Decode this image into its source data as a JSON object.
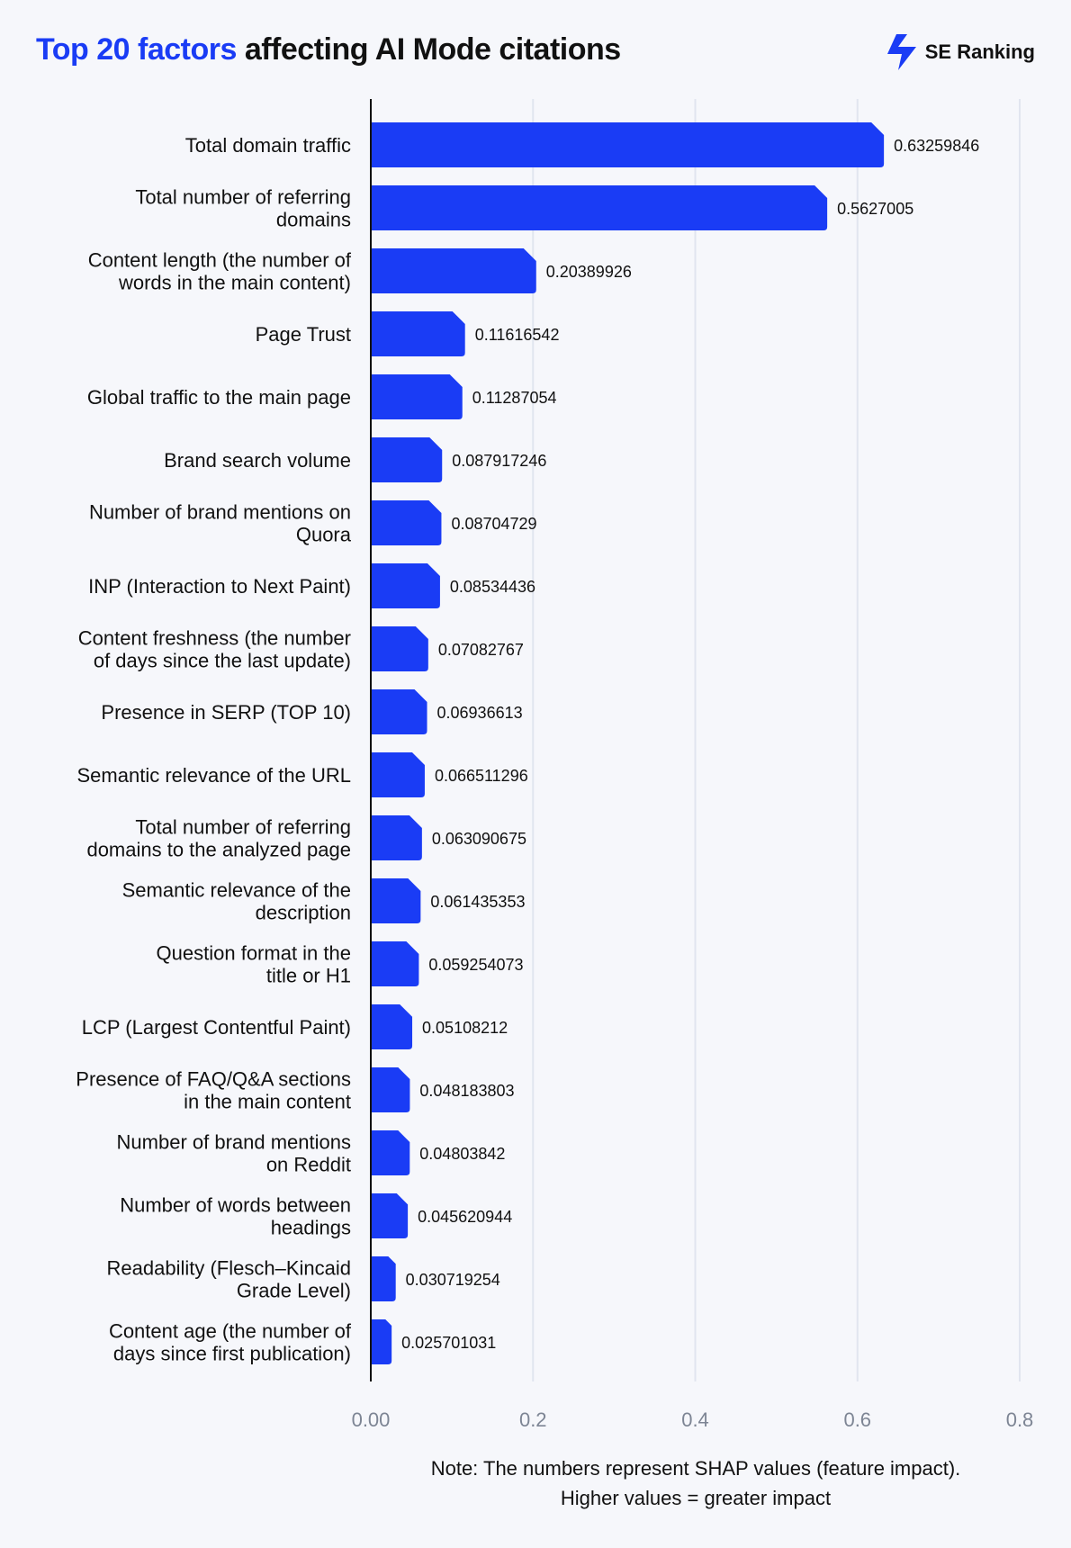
{
  "header": {
    "title_highlight": "Top 20 factors",
    "title_rest": "affecting AI Mode citations",
    "logo_text": "SE Ranking"
  },
  "colors": {
    "bar": "#1a3cf5",
    "highlight": "#1a3cf5",
    "grid": "#e1e5ef",
    "tick": "#7d8594"
  },
  "chart_data": {
    "type": "bar",
    "orientation": "horizontal",
    "title": "Top 20 factors affecting AI Mode citations",
    "categories": [
      "Total domain traffic",
      "Total number of referring domains",
      "Content length (the number of words in the main content)",
      "Page Trust",
      "Global traffic to the main page",
      "Brand search volume",
      "Number of brand mentions on Quora",
      "INP (Interaction to Next Paint)",
      "Content freshness (the number of days since the last update)",
      "Presence in SERP (TOP 10)",
      "Semantic relevance of the URL",
      "Total number of referring domains to the analyzed page",
      "Semantic relevance of the description",
      "Question format in the title or H1",
      "LCP (Largest Contentful Paint)",
      "Presence of FAQ/Q&A sections in the main content",
      "Number of brand mentions on Reddit",
      "Number of words between headings",
      "Readability (Flesch–Kincaid Grade Level)",
      "Content age (the number of days since first publication)"
    ],
    "label_lines": [
      [
        "Total domain traffic"
      ],
      [
        "Total number of referring",
        "domains"
      ],
      [
        "Content length (the number of",
        "words in the main content)"
      ],
      [
        "Page Trust"
      ],
      [
        "Global traffic to the main page"
      ],
      [
        "Brand search volume"
      ],
      [
        "Number of brand mentions on",
        "Quora"
      ],
      [
        "INP (Interaction to Next Paint)"
      ],
      [
        "Content freshness (the number",
        "of days since the last update)"
      ],
      [
        "Presence in SERP (TOP 10)"
      ],
      [
        "Semantic relevance of the URL"
      ],
      [
        "Total number of referring",
        "domains to the analyzed page"
      ],
      [
        "Semantic relevance of the",
        "description"
      ],
      [
        "Question format in the",
        "title or H1"
      ],
      [
        "LCP (Largest Contentful Paint)"
      ],
      [
        "Presence of FAQ/Q&A sections",
        "in the main content"
      ],
      [
        "Number of brand mentions",
        "on Reddit"
      ],
      [
        "Number of words between",
        "headings"
      ],
      [
        "Readability (Flesch–Kincaid",
        "Grade Level)"
      ],
      [
        "Content age (the number of",
        "days since first publication)"
      ]
    ],
    "values": [
      0.63259846,
      0.5627005,
      0.20389926,
      0.11616542,
      0.11287054,
      0.087917246,
      0.08704729,
      0.08534436,
      0.07082767,
      0.06936613,
      0.066511296,
      0.063090675,
      0.061435353,
      0.059254073,
      0.05108212,
      0.048183803,
      0.04803842,
      0.045620944,
      0.030719254,
      0.025701031
    ],
    "value_labels": [
      "0.63259846",
      "0.5627005",
      "0.20389926",
      "0.11616542",
      "0.11287054",
      "0.087917246",
      "0.08704729",
      "0.08534436",
      "0.07082767",
      "0.06936613",
      "0.066511296",
      "0.063090675",
      "0.061435353",
      "0.059254073",
      "0.05108212",
      "0.048183803",
      "0.04803842",
      "0.045620944",
      "0.030719254",
      "0.025701031"
    ],
    "xticks": [
      0,
      0.2,
      0.4,
      0.6,
      0.8
    ],
    "xtick_labels": [
      "0.00",
      "0.2",
      "0.4",
      "0.6",
      "0.8"
    ],
    "xlim": [
      0,
      0.8
    ],
    "grid": true,
    "note": [
      "Note: The numbers represent SHAP values (feature impact).",
      "Higher values = greater impact"
    ]
  }
}
